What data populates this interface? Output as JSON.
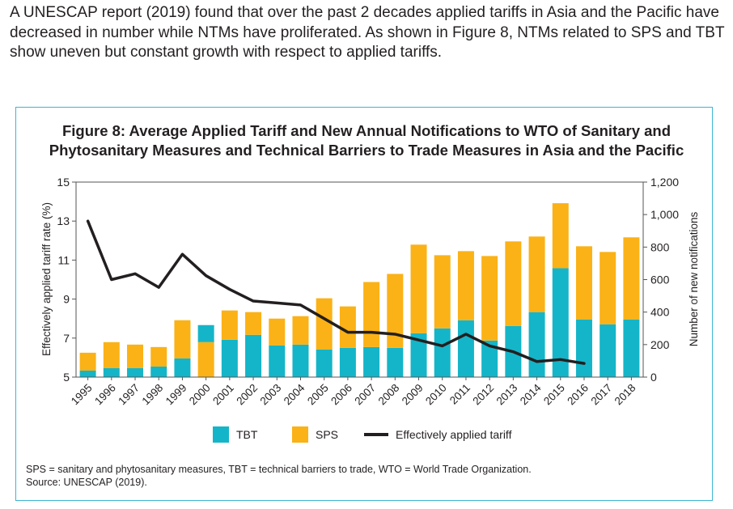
{
  "intro_text": "A UNESCAP report (2019) found that over the past 2 decades applied tariffs in Asia and the Pacific have decreased in number while NTMs have proliferated. As shown in Figure 8, NTMs related to SPS and TBT show uneven but constant growth with respect to applied tariffs.",
  "footnote": "SPS = sanitary and phytosanitary measures, TBT = technical barriers to trade, WTO = World Trade Organization.",
  "source": "Source: UNESCAP (2019).",
  "colors": {
    "tbt": "#14b5c8",
    "sps": "#fbb216",
    "tariff": "#231f20",
    "frame": "#3bb6d1"
  },
  "chart_data": {
    "type": "bar",
    "title_line1": "Figure 8: Average Applied Tariff and New Annual Notifications to WTO of Sanitary and",
    "title_line2": "Phytosanitary Measures and Technical Barriers to Trade Measures in Asia and the Pacific",
    "ylabel_left": "Effectively applied tariff rate (%)",
    "ylabel_right": "Number of new notifications",
    "left_axis": {
      "min": 5,
      "max": 15,
      "ticks": [
        "5",
        "7",
        "9",
        "11",
        "13",
        "15"
      ]
    },
    "right_axis": {
      "min": 0,
      "max": 1200,
      "ticks": [
        "0",
        "200",
        "400",
        "600",
        "800",
        "1,000",
        "1,200"
      ]
    },
    "categories": [
      "1995",
      "1996",
      "1997",
      "1998",
      "1999",
      "2000",
      "2001",
      "2002",
      "2003",
      "2004",
      "2005",
      "2006",
      "2007",
      "2008",
      "2009",
      "2010",
      "2011",
      "2012",
      "2013",
      "2014",
      "2015",
      "2016",
      "2017",
      "2018"
    ],
    "series": [
      {
        "name": "TBT",
        "type": "bar",
        "stack": "notifications",
        "axis": "right",
        "values": [
          40,
          55,
          55,
          65,
          115,
          320,
          230,
          260,
          195,
          200,
          170,
          180,
          185,
          180,
          270,
          300,
          350,
          225,
          315,
          400,
          670,
          355,
          325,
          355
        ]
      },
      {
        "name": "SPS",
        "type": "bar",
        "stack": "notifications",
        "axis": "right",
        "values": [
          110,
          160,
          145,
          120,
          235,
          0,
          180,
          140,
          165,
          175,
          315,
          255,
          400,
          455,
          545,
          450,
          425,
          520,
          520,
          465,
          400,
          450,
          445,
          505
        ]
      },
      {
        "name": "SPS",
        "type": "bar",
        "stack": "2000-overlay",
        "axis": "right",
        "note": "2000 split bar",
        "values": [
          0,
          0,
          0,
          0,
          0,
          215,
          0,
          0,
          0,
          0,
          0,
          0,
          0,
          0,
          0,
          0,
          0,
          0,
          0,
          0,
          0,
          0,
          0,
          0
        ]
      },
      {
        "name": "Effectively applied tariff",
        "type": "line",
        "axis": "left",
        "values": [
          13.0,
          10.0,
          10.3,
          9.6,
          11.3,
          10.2,
          9.5,
          8.9,
          8.8,
          8.7,
          8.0,
          7.3,
          7.3,
          7.2,
          6.9,
          6.6,
          7.2,
          6.6,
          6.3,
          5.8,
          5.9,
          5.7,
          null,
          null
        ]
      }
    ],
    "legend": [
      "TBT",
      "SPS",
      "Effectively applied tariff"
    ],
    "legend_position": "bottom",
    "grid": false
  }
}
